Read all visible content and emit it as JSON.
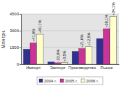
{
  "chart_data": {
    "type": "bar",
    "y_label": "Млн грн.",
    "categories": [
      "Импорт",
      "Экспорт",
      "Производство",
      "Рынок"
    ],
    "series": [
      {
        "name": "2004 г.",
        "color": "#2e3192",
        "values": [
          1350,
          200,
          1150,
          2300
        ]
      },
      {
        "name": "2005 г.",
        "color": "#cc3399",
        "values": [
          1915,
          132,
          1400,
          3180
        ],
        "annotations": [
          "+41,9%",
          "-33,9%",
          "+21,6%",
          "+38,1%"
        ]
      },
      {
        "name": "2006 г.",
        "color": "#ffffcc",
        "values": [
          2685,
          137,
          1575,
          4265
        ],
        "annotations": [
          "+40,1%",
          "+3,5%",
          "+12,5%",
          "+34,1%"
        ]
      }
    ],
    "ylim": [
      0,
      4500
    ],
    "yticks": [
      0,
      1500,
      3000,
      4500
    ],
    "grid": true,
    "legend": "bottom"
  }
}
